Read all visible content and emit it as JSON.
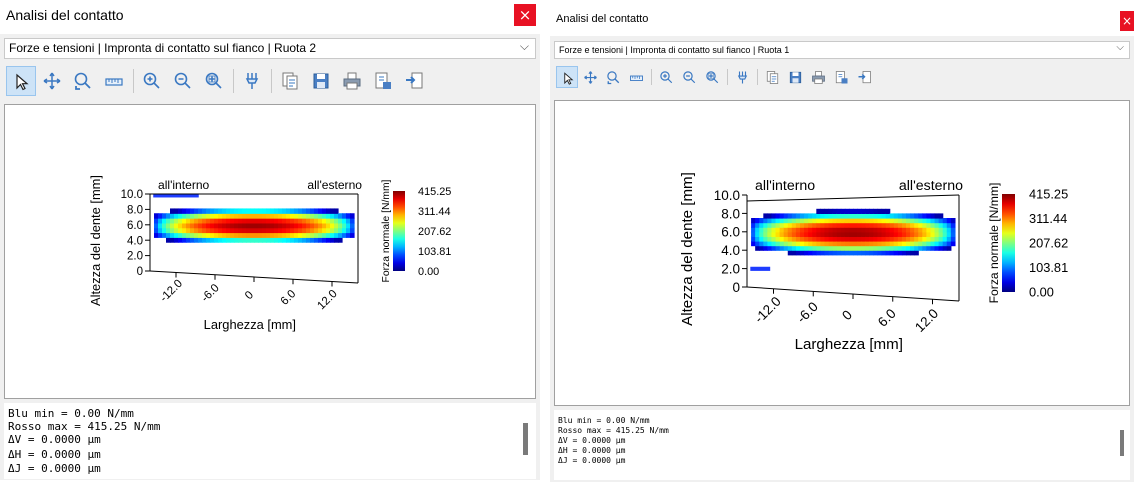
{
  "left": {
    "title": "Analisi del contatto",
    "selector": "Forze e tensioni | Impronta di contatto sul fianco | Ruota 2",
    "info_lines": [
      "Blu min = 0.00 N/mm",
      "Rosso max = 415.25 N/mm",
      "ΔV = 0.0000 µm",
      "ΔH = 0.0000 µm",
      "ΔJ = 0.0000 µm"
    ]
  },
  "right": {
    "title": "Analisi del contatto",
    "selector": "Forze e tensioni | Impronta di contatto sul fianco | Ruota 1",
    "info_lines": [
      "Blu min = 0.00 N/mm",
      "Rosso max = 415.25 N/mm",
      "ΔV = 0.0000 µm",
      "ΔH = 0.0000 µm",
      "ΔJ = 0.0000 µm"
    ]
  },
  "close_glyph": "×",
  "chevron_glyph": "⌵",
  "toolbar_icons": [
    "pointer-icon",
    "pan-icon",
    "zoom-window-icon",
    "measure-icon",
    "zoom-in-icon",
    "zoom-out-icon",
    "zoom-fit-icon",
    "probe-icon",
    "copy-icon",
    "save-icon",
    "print-icon",
    "export-icon",
    "send-icon"
  ],
  "chart_data": [
    {
      "type": "heatmap",
      "panel": "Ruota 2",
      "xlabel": "Larghezza [mm]",
      "ylabel": "Altezza del dente [mm]",
      "xticks": [
        "-12.0",
        "-6.0",
        "0",
        "6.0",
        "12.0"
      ],
      "yticks": [
        "0",
        "2.0",
        "4.0",
        "6.0",
        "8.0",
        "10.0"
      ],
      "xlim": [
        -16,
        16
      ],
      "ylim": [
        0,
        10
      ],
      "annotations": [
        "all'interno",
        "all'esterno"
      ],
      "colorbar_label": "Forza normale [N/mm]",
      "colorbar_ticks": [
        "415.25",
        "311.44",
        "207.62",
        "103.81",
        "0.00"
      ],
      "min": 0.0,
      "max": 415.25
    },
    {
      "type": "heatmap",
      "panel": "Ruota 1",
      "xlabel": "Larghezza [mm]",
      "ylabel": "Altezza del dente [mm]",
      "xticks": [
        "-12.0",
        "-6.0",
        "0",
        "6.0",
        "12.0"
      ],
      "yticks": [
        "0",
        "2.0",
        "4.0",
        "6.0",
        "8.0",
        "10.0"
      ],
      "xlim": [
        -16,
        16
      ],
      "ylim": [
        0,
        10
      ],
      "annotations": [
        "all'interno",
        "all'esterno"
      ],
      "colorbar_label": "Forza normale [N/mm]",
      "colorbar_ticks": [
        "415.25",
        "311.44",
        "207.62",
        "103.81",
        "0.00"
      ],
      "min": 0.0,
      "max": 415.25
    }
  ]
}
